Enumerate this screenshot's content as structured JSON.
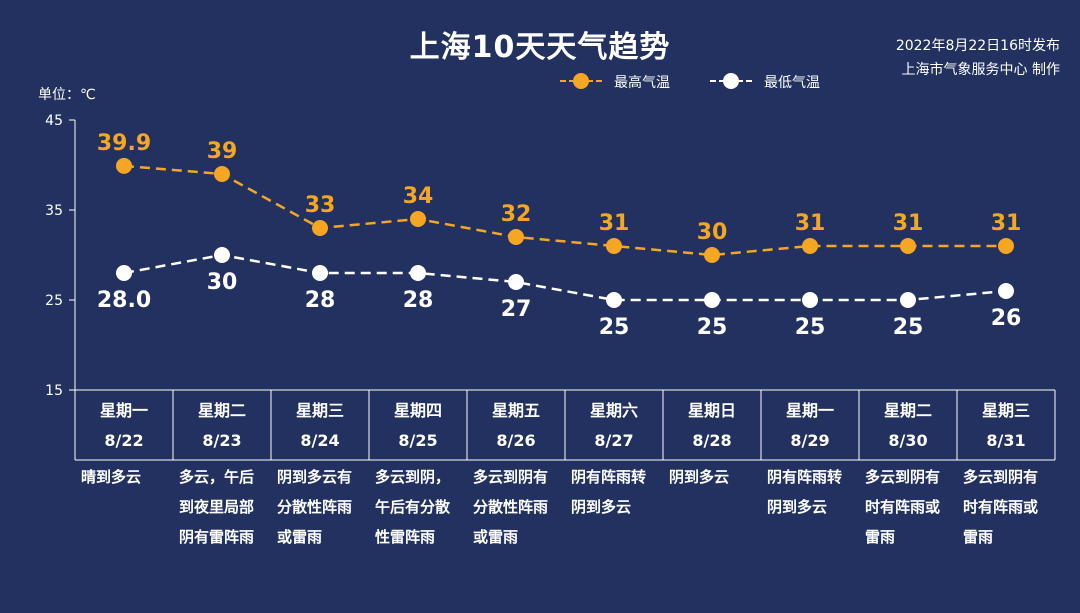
{
  "title": "上海10天天气趋势",
  "publish": {
    "time": "2022年8月22日16时发布",
    "source": "上海市气象服务中心 制作"
  },
  "unit": "单位：℃",
  "legend": {
    "high": "最高气温",
    "low": "最低气温"
  },
  "colors": {
    "background": "#22315f",
    "high": "#f5a623",
    "low": "#ffffff",
    "axis": "#ffffff"
  },
  "chart_data": {
    "type": "line",
    "y_ticks": [
      "45",
      "35",
      "25",
      "15"
    ],
    "ylim": [
      15,
      45
    ],
    "grid": false,
    "legend_position": "top-right",
    "categories": [
      "8/22",
      "8/23",
      "8/24",
      "8/25",
      "8/26",
      "8/27",
      "8/28",
      "8/29",
      "8/30",
      "8/31"
    ],
    "weekdays": [
      "星期一",
      "星期二",
      "星期三",
      "星期四",
      "星期五",
      "星期六",
      "星期日",
      "星期一",
      "星期二",
      "星期三"
    ],
    "series": [
      {
        "name": "最高气温",
        "values": [
          39.9,
          39,
          33,
          34,
          32,
          31,
          30,
          31,
          31,
          31
        ],
        "labels": [
          "39.9",
          "39",
          "33",
          "34",
          "32",
          "31",
          "30",
          "31",
          "31",
          "31"
        ]
      },
      {
        "name": "最低气温",
        "values": [
          28,
          30,
          28,
          28,
          27,
          25,
          25,
          25,
          25,
          26
        ],
        "labels": [
          "28.0",
          "30",
          "28",
          "28",
          "27",
          "25",
          "25",
          "25",
          "25",
          "26"
        ]
      }
    ]
  },
  "descriptions": [
    "晴到多云",
    "多云，午后\n到夜里局部\n阴有雷阵雨",
    "阴到多云有\n分散性阵雨\n或雷雨",
    "多云到阴，\n午后有分散\n性雷阵雨",
    "多云到阴有\n分散性阵雨\n或雷雨",
    "阴有阵雨转\n阴到多云",
    "阴到多云",
    "阴有阵雨转\n阴到多云",
    "多云到阴有\n时有阵雨或\n雷雨",
    "多云到阴有\n时有阵雨或\n雷雨"
  ]
}
